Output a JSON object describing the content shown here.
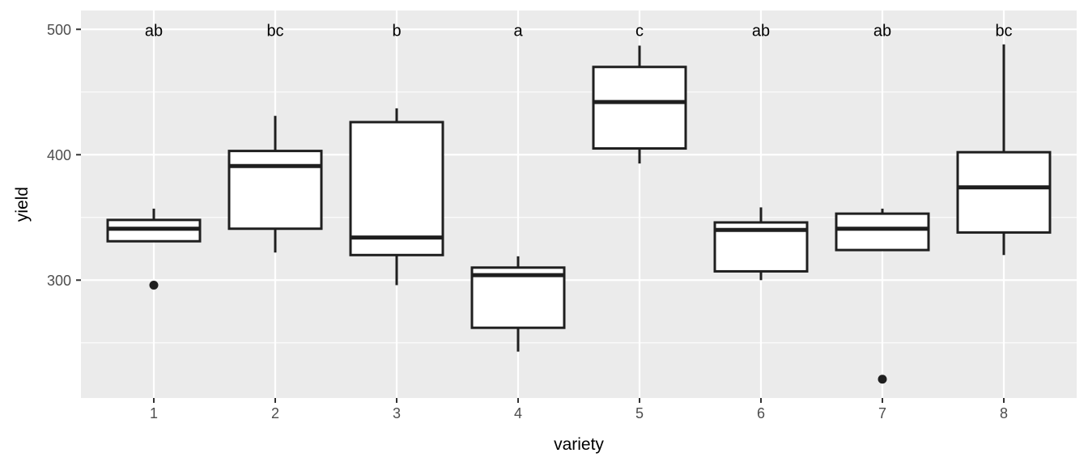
{
  "chart_data": {
    "type": "boxplot",
    "title": "",
    "xlabel": "variety",
    "ylabel": "yield",
    "categories": [
      "1",
      "2",
      "3",
      "4",
      "5",
      "6",
      "7",
      "8"
    ],
    "group_letters": [
      "ab",
      "bc",
      "b",
      "a",
      "c",
      "ab",
      "ab",
      "bc"
    ],
    "letters_y_value": 500,
    "series": [
      {
        "category": "1",
        "letter": "ab",
        "whisker_low": 331,
        "q1": 331,
        "median": 341,
        "q3": 348,
        "whisker_high": 357,
        "outliers": [
          296
        ]
      },
      {
        "category": "2",
        "letter": "bc",
        "whisker_low": 322,
        "q1": 341,
        "median": 391,
        "q3": 403,
        "whisker_high": 431,
        "outliers": []
      },
      {
        "category": "3",
        "letter": "b",
        "whisker_low": 296,
        "q1": 320,
        "median": 334,
        "q3": 426,
        "whisker_high": 437,
        "outliers": []
      },
      {
        "category": "4",
        "letter": "a",
        "whisker_low": 243,
        "q1": 262,
        "median": 304,
        "q3": 310,
        "whisker_high": 319,
        "outliers": []
      },
      {
        "category": "5",
        "letter": "c",
        "whisker_low": 393,
        "q1": 405,
        "median": 442,
        "q3": 470,
        "whisker_high": 487,
        "outliers": []
      },
      {
        "category": "6",
        "letter": "ab",
        "whisker_low": 300,
        "q1": 307,
        "median": 340,
        "q3": 346,
        "whisker_high": 358,
        "outliers": []
      },
      {
        "category": "7",
        "letter": "ab",
        "whisker_low": 324,
        "q1": 324,
        "median": 341,
        "q3": 353,
        "whisker_high": 357,
        "outliers": [
          221
        ]
      },
      {
        "category": "8",
        "letter": "bc",
        "whisker_low": 320,
        "q1": 338,
        "median": 374,
        "q3": 402,
        "whisker_high": 488,
        "outliers": []
      }
    ],
    "y_ticks": [
      300,
      400,
      500
    ],
    "y_tick_labels": [
      "300",
      "400",
      "500"
    ],
    "y_minor_ticks": [
      250,
      350,
      450
    ],
    "ylim": [
      206,
      515
    ],
    "grid": true,
    "legend": "none",
    "colors": {
      "panel_bg": "#EBEBEB",
      "grid": "#FFFFFF",
      "box_fill": "#FFFFFF",
      "box_border": "#1F1F1F",
      "outlier": "#1F1F1F",
      "axis_text": "#4D4D4D",
      "axis_title": "#000000",
      "tick_mark": "#333333",
      "letter_text": "#000000"
    }
  }
}
